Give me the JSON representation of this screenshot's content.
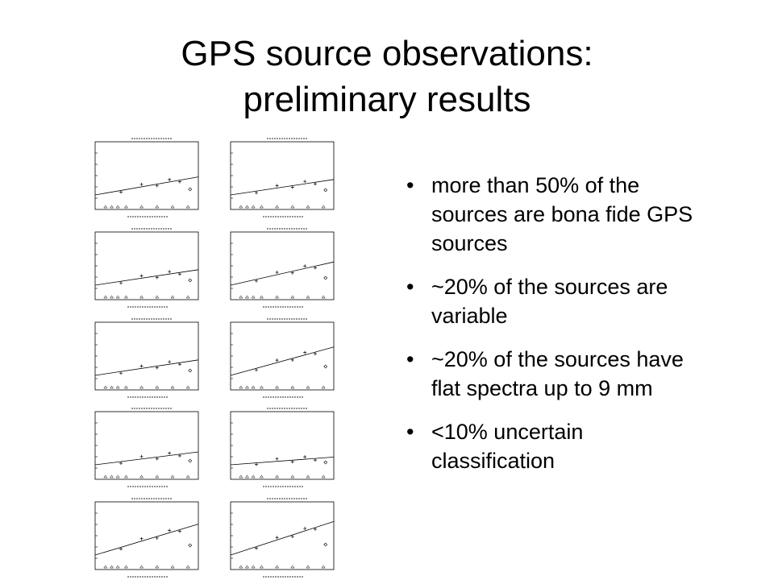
{
  "title": {
    "line1": "GPS source observations:",
    "line2": "preliminary results"
  },
  "bullets": [
    "more than 50% of the sources are bona fide GPS sources",
    "~20% of the sources are variable",
    "~20% of the sources have flat spectra up to 9 mm",
    "<10% uncertain classification"
  ]
}
